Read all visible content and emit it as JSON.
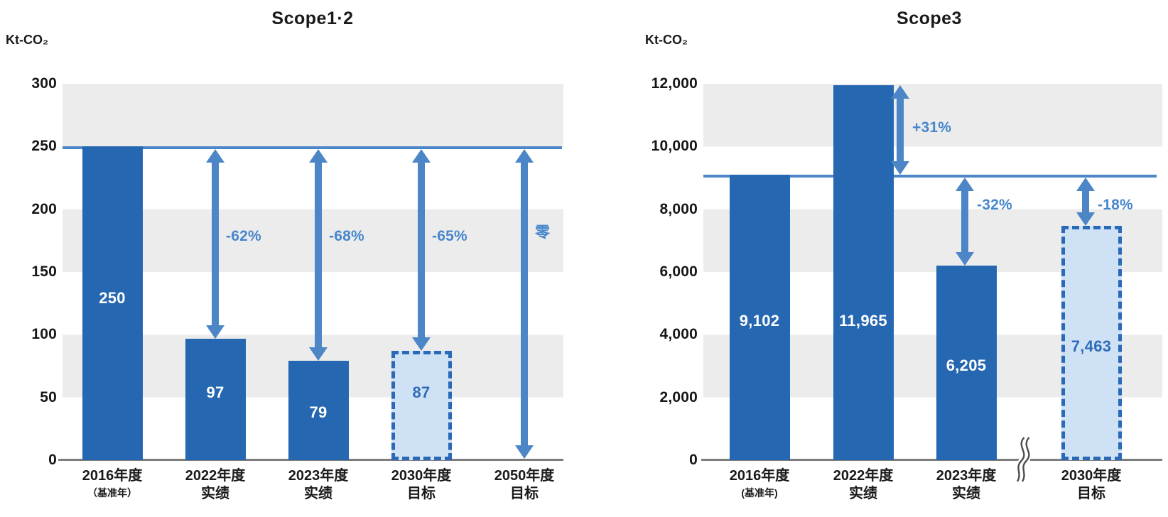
{
  "charts": [
    {
      "title": "Scope1·2",
      "unit": "Kt-CO₂",
      "chart_data": {
        "type": "bar",
        "ylabel_unit": "Kt-CO₂",
        "ylim": [
          0,
          300
        ],
        "ytick_labels": [
          "300",
          "250",
          "200",
          "150",
          "100",
          "50",
          "0"
        ],
        "grid_bands": "alternating gray/white horizontal bands, 50 per band",
        "reference_line_value": 250,
        "categories": [
          {
            "label_line1": "2016年度",
            "label_line2": "（基准年）",
            "small_line2": true,
            "value": 250,
            "value_label": "250",
            "bar_style": "solid",
            "delta_label": null
          },
          {
            "label_line1": "2022年度",
            "label_line2": "实绩",
            "small_line2": false,
            "value": 97,
            "value_label": "97",
            "bar_style": "solid",
            "delta_label": "-62%"
          },
          {
            "label_line1": "2023年度",
            "label_line2": "实绩",
            "small_line2": false,
            "value": 79,
            "value_label": "79",
            "bar_style": "solid",
            "delta_label": "-68%"
          },
          {
            "label_line1": "2030年度",
            "label_line2": "目标",
            "small_line2": false,
            "value": 87,
            "value_label": "87",
            "bar_style": "dashed",
            "delta_label": "-65%"
          },
          {
            "label_line1": "2050年度",
            "label_line2": "目标",
            "small_line2": false,
            "value": 0,
            "value_label": "",
            "bar_style": "none",
            "delta_label": "零"
          }
        ]
      }
    },
    {
      "title": "Scope3",
      "unit": "Kt-CO₂",
      "chart_data": {
        "type": "bar",
        "ylabel_unit": "Kt-CO₂",
        "ylim": [
          0,
          12000
        ],
        "ytick_labels": [
          "12,000",
          "10,000",
          "8,000",
          "6,000",
          "4,000",
          "2,000",
          "0"
        ],
        "grid_bands": "alternating gray/white horizontal bands, 2000 per band",
        "reference_line_value": 9102,
        "axis_break_between": [
          "2023年度",
          "2030年度"
        ],
        "categories": [
          {
            "label_line1": "2016年度",
            "label_line2": "(基准年)",
            "small_line2": true,
            "value": 9102,
            "value_label": "9,102",
            "bar_style": "solid",
            "delta_label": null
          },
          {
            "label_line1": "2022年度",
            "label_line2": "实绩",
            "small_line2": false,
            "value": 11965,
            "value_label": "11,965",
            "bar_style": "solid",
            "delta_label": "+31%"
          },
          {
            "label_line1": "2023年度",
            "label_line2": "实绩",
            "small_line2": false,
            "value": 6205,
            "value_label": "6,205",
            "bar_style": "solid",
            "delta_label": "-32%"
          },
          {
            "label_line1": "2030年度",
            "label_line2": "目标",
            "small_line2": false,
            "value": 7463,
            "value_label": "7,463",
            "bar_style": "dashed",
            "delta_label": "-18%"
          }
        ]
      }
    }
  ],
  "colors": {
    "bar_solid": "#2667b1",
    "bar_target_fill": "#cfe1f5",
    "bar_target_border": "#2a69b8",
    "arrow": "#4c86c7",
    "reference_line": "#4d86c6",
    "delta_text": "#4787cc",
    "band_gray": "#ececec",
    "axis_line": "#7d7d7d",
    "text": "#1a1a1a",
    "value_text_on_bar": "#ffffff",
    "value_text_on_target": "#2f6cb7"
  }
}
